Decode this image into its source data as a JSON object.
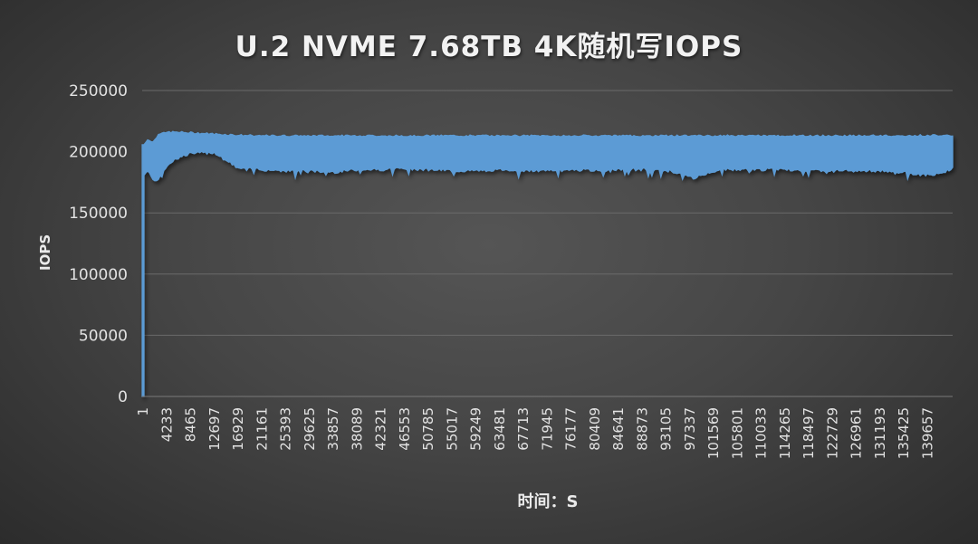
{
  "chart_data": {
    "type": "area",
    "title": "U.2 NVME 7.68TB 4K随机写IOPS",
    "xlabel": "时间：S",
    "ylabel": "IOPS",
    "ylim": [
      0,
      250000
    ],
    "yticks": [
      0,
      50000,
      100000,
      150000,
      200000,
      250000
    ],
    "ytick_labels": [
      "0",
      "50000",
      "100000",
      "150000",
      "200000",
      "250000"
    ],
    "xtick_labels": [
      "1",
      "4233",
      "8465",
      "12697",
      "16929",
      "21161",
      "25393",
      "29625",
      "33857",
      "38089",
      "42321",
      "46553",
      "50785",
      "55017",
      "59249",
      "63481",
      "67713",
      "71945",
      "76177",
      "80409",
      "84641",
      "88873",
      "93105",
      "97337",
      "101569",
      "105801",
      "110033",
      "114265",
      "118497",
      "122729",
      "126961",
      "131193",
      "135425",
      "139657"
    ],
    "grid": {
      "horizontal": true,
      "vertical": false
    },
    "legend": null,
    "series_color": "#5b9bd5",
    "series": [
      {
        "name": "IOPS",
        "x": [
          1,
          200,
          1000,
          2000,
          3000,
          4233,
          6000,
          8465,
          12697,
          16929,
          21161,
          25393,
          29625,
          33857,
          38089,
          42321,
          46553,
          50785,
          55017,
          59249,
          63481,
          67713,
          71945,
          76177,
          80409,
          84641,
          88873,
          93105,
          97337,
          101569,
          105801,
          110033,
          114265,
          118497,
          122729,
          126961,
          131193,
          135425,
          139657,
          143000
        ],
        "max": [
          0,
          205000,
          210000,
          208000,
          215000,
          216000,
          216000,
          215500,
          214500,
          213500,
          213000,
          213000,
          213000,
          213000,
          213000,
          213000,
          213000,
          213000,
          213000,
          213000,
          213000,
          213000,
          213000,
          213000,
          213000,
          213000,
          213000,
          213000,
          213000,
          213000,
          213000,
          213000,
          213000,
          213000,
          213000,
          213000,
          213000,
          213000,
          213500,
          213500
        ],
        "min": [
          0,
          180000,
          185000,
          175000,
          178000,
          188000,
          194000,
          198000,
          199000,
          186000,
          185000,
          184000,
          184000,
          183000,
          185000,
          185000,
          186000,
          185000,
          184000,
          184000,
          185000,
          184000,
          184000,
          185000,
          184000,
          185000,
          185000,
          184000,
          178000,
          185000,
          185000,
          185000,
          185000,
          184000,
          184000,
          184000,
          184000,
          182000,
          180000,
          186000
        ]
      }
    ]
  }
}
